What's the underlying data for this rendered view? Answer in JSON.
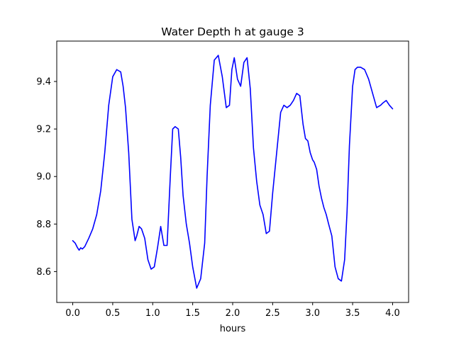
{
  "chart_data": {
    "type": "line",
    "title": "Water Depth h at gauge 3",
    "xlabel": "hours",
    "ylabel": "",
    "xlim": [
      -0.2,
      4.2
    ],
    "ylim": [
      8.47,
      9.57
    ],
    "xticks": [
      "0.0",
      "0.5",
      "1.0",
      "1.5",
      "2.0",
      "2.5",
      "3.0",
      "3.5",
      "4.0"
    ],
    "yticks": [
      "8.6",
      "8.8",
      "9.0",
      "9.2",
      "9.4"
    ],
    "grid": false,
    "color": "#0000ff",
    "series": [
      {
        "x": [
          0.0,
          0.03,
          0.06,
          0.08,
          0.1,
          0.12,
          0.15,
          0.2,
          0.25,
          0.3,
          0.35,
          0.4,
          0.45,
          0.5,
          0.55,
          0.6,
          0.63,
          0.66,
          0.7,
          0.74,
          0.78,
          0.8,
          0.83,
          0.86,
          0.9,
          0.94,
          0.98,
          1.02,
          1.06,
          1.1,
          1.14,
          1.18,
          1.22,
          1.25,
          1.28,
          1.32,
          1.35,
          1.38,
          1.42,
          1.46,
          1.5,
          1.55,
          1.6,
          1.65,
          1.68,
          1.72,
          1.77,
          1.82,
          1.87,
          1.92,
          1.96,
          1.99,
          2.02,
          2.06,
          2.1,
          2.14,
          2.18,
          2.22,
          2.26,
          2.3,
          2.34,
          2.38,
          2.42,
          2.46,
          2.5,
          2.55,
          2.6,
          2.64,
          2.68,
          2.72,
          2.76,
          2.8,
          2.84,
          2.88,
          2.91,
          2.94,
          2.97,
          3.0,
          3.02,
          3.05,
          3.08,
          3.11,
          3.14,
          3.17,
          3.2,
          3.24,
          3.28,
          3.32,
          3.36,
          3.4,
          3.43,
          3.46,
          3.5,
          3.53,
          3.56,
          3.6,
          3.65,
          3.7,
          3.75,
          3.8,
          3.85,
          3.88,
          3.92,
          3.96,
          4.0
        ],
        "y": [
          8.73,
          8.72,
          8.7,
          8.69,
          8.7,
          8.695,
          8.705,
          8.74,
          8.78,
          8.84,
          8.94,
          9.1,
          9.3,
          9.42,
          9.45,
          9.44,
          9.38,
          9.29,
          9.1,
          8.82,
          8.73,
          8.75,
          8.79,
          8.78,
          8.74,
          8.65,
          8.61,
          8.62,
          8.7,
          8.79,
          8.71,
          8.71,
          9.0,
          9.2,
          9.21,
          9.2,
          9.08,
          8.92,
          8.8,
          8.72,
          8.62,
          8.53,
          8.57,
          8.72,
          9.0,
          9.3,
          9.49,
          9.51,
          9.42,
          9.29,
          9.3,
          9.45,
          9.5,
          9.41,
          9.38,
          9.48,
          9.5,
          9.37,
          9.12,
          8.98,
          8.88,
          8.84,
          8.76,
          8.77,
          8.93,
          9.1,
          9.27,
          9.3,
          9.29,
          9.3,
          9.32,
          9.35,
          9.34,
          9.22,
          9.16,
          9.15,
          9.1,
          9.07,
          9.06,
          9.03,
          8.96,
          8.91,
          8.87,
          8.84,
          8.8,
          8.75,
          8.62,
          8.57,
          8.56,
          8.65,
          8.85,
          9.13,
          9.38,
          9.45,
          9.46,
          9.46,
          9.45,
          9.41,
          9.35,
          9.29,
          9.3,
          9.31,
          9.32,
          9.3,
          9.285
        ]
      }
    ]
  }
}
